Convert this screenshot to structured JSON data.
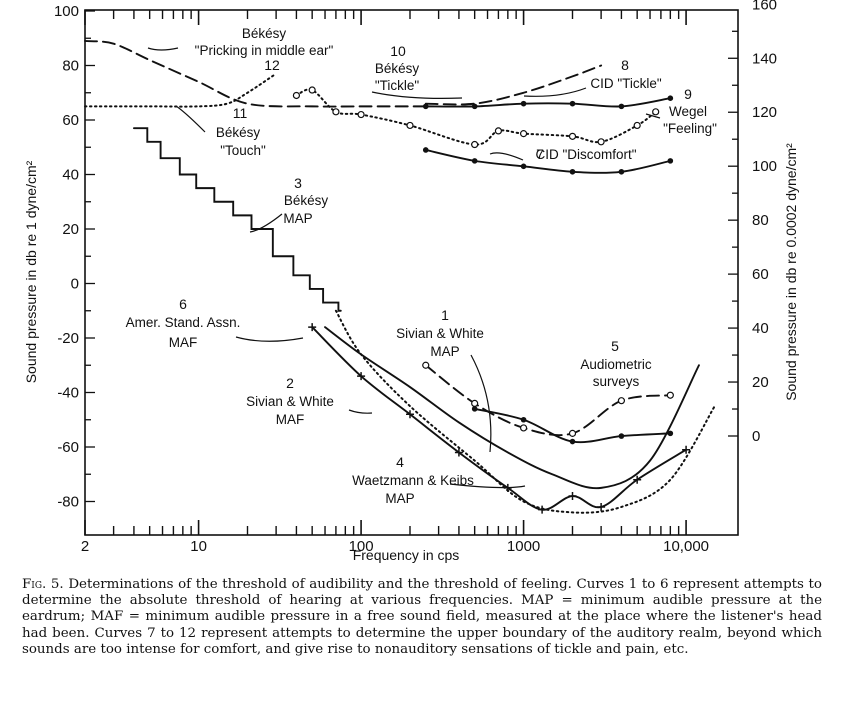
{
  "chart_data": {
    "type": "line",
    "xlabel": "Frequency in cps",
    "ylabel": "Sound pressure in db re 1 dyne/cm²",
    "ylabel_right": "Sound pressure in db re 0.0002 dyne/cm²",
    "x_scale": "log",
    "xlim": [
      2,
      20000
    ],
    "ylim": [
      -90,
      100
    ],
    "x_ticks": [
      2,
      10,
      100,
      1000,
      10000
    ],
    "x_tick_labels": [
      "2",
      "10",
      "100",
      "1000",
      "10,000"
    ],
    "y_ticks": [
      100,
      80,
      60,
      40,
      20,
      0,
      -20,
      -40,
      -60,
      -80
    ],
    "y_tick_labels": [
      "100",
      "80",
      "60",
      "40",
      "20",
      "0",
      "-20",
      "-40",
      "-60",
      "-80"
    ],
    "y_right_ticks": [
      160,
      140,
      120,
      100,
      80,
      60,
      40,
      20,
      0
    ],
    "y_right_tick_labels": [
      "160",
      "140",
      "120",
      "100",
      "80",
      "60",
      "40",
      "20",
      "0"
    ],
    "series": [
      {
        "name": "1 Sivian & White MAP",
        "style": "dashed",
        "marker": "circle",
        "x": [
          250,
          500,
          1000,
          2000,
          4000,
          8000
        ],
        "y": [
          -30,
          -44,
          -53,
          -55,
          -43,
          -41
        ]
      },
      {
        "name": "2 Sivian & White MAF",
        "style": "solid",
        "marker": "none",
        "x": [
          60,
          100,
          200,
          400,
          800,
          1500,
          3000,
          6000,
          12000
        ],
        "y": [
          -16,
          -26,
          -38,
          -51,
          -62,
          -70,
          -75,
          -65,
          -30
        ]
      },
      {
        "name": "3 Békésy MAP",
        "style": "staircase",
        "marker": "none",
        "x": [
          4,
          5,
          6,
          8,
          10,
          13,
          17,
          22,
          30,
          40,
          50,
          60,
          75
        ],
        "y": [
          57,
          52,
          46,
          40,
          35,
          30,
          25,
          20,
          10,
          3,
          -2,
          -7,
          -10
        ]
      },
      {
        "name": "4 Waetzmann & Keibs MAP",
        "style": "solid",
        "marker": "plus",
        "x": [
          50,
          100,
          200,
          400,
          800,
          1300,
          2000,
          3000,
          5000,
          10000
        ],
        "y": [
          -16,
          -34,
          -48,
          -62,
          -75,
          -83,
          -78,
          -82,
          -72,
          -61
        ]
      },
      {
        "name": "5 Audiometric surveys",
        "style": "solid",
        "marker": "dot",
        "x": [
          500,
          1000,
          2000,
          4000,
          8000
        ],
        "y": [
          -46,
          -50,
          -58,
          -56,
          -55
        ]
      },
      {
        "name": "6 Amer. Stand. Assn. MAF",
        "style": "dotted",
        "marker": "none",
        "x": [
          70,
          100,
          200,
          500,
          1000,
          2000,
          4000,
          8000,
          15000
        ],
        "y": [
          -10,
          -26,
          -45,
          -65,
          -80,
          -84,
          -82,
          -72,
          -45
        ]
      },
      {
        "name": "7 CID \"Discomfort\"",
        "style": "solid",
        "marker": "dot",
        "x": [
          250,
          500,
          1000,
          2000,
          4000,
          8000
        ],
        "y": [
          49,
          45,
          43,
          41,
          41,
          45
        ]
      },
      {
        "name": "8 CID \"Tickle\"",
        "style": "solid",
        "marker": "dot",
        "x": [
          250,
          500,
          1000,
          2000,
          4000,
          8000
        ],
        "y": [
          65,
          65,
          66,
          66,
          65,
          68
        ]
      },
      {
        "name": "9 Wegel \"Feeling\"",
        "style": "dotted",
        "marker": "circle",
        "x": [
          40,
          50,
          70,
          100,
          200,
          500,
          700,
          1000,
          2000,
          3000,
          5000,
          6500
        ],
        "y": [
          69,
          71,
          63,
          62,
          58,
          51,
          56,
          55,
          54,
          52,
          58,
          63
        ]
      },
      {
        "name": "10 Békésy \"Tickle\"",
        "style": "dashed",
        "marker": "none",
        "x": [
          250,
          500,
          1000,
          2000,
          3000
        ],
        "y": [
          66,
          66,
          70,
          76,
          80
        ]
      },
      {
        "name": "11 Békésy \"Touch\"",
        "style": "dotted",
        "marker": "none",
        "x": [
          2,
          5,
          10,
          15,
          20,
          30
        ],
        "y": [
          65,
          65,
          65,
          66,
          70,
          77
        ]
      },
      {
        "name": "12 Békésy \"Pricking in middle ear\"",
        "style": "dashed",
        "marker": "none",
        "x": [
          2,
          3,
          5,
          10,
          20,
          50,
          100,
          250
        ],
        "y": [
          89,
          88,
          82,
          74,
          66,
          65,
          65,
          65
        ]
      }
    ],
    "annotations": [
      {
        "label": "Békésy \"Pricking in middle ear\"",
        "num": "12"
      },
      {
        "label": "Békésy \"Tickle\"",
        "num": "10"
      },
      {
        "label": "CID \"Tickle\"",
        "num": "8"
      },
      {
        "label": "Wegel \"Feeling\"",
        "num": "9"
      },
      {
        "label": "Békésy \"Touch\"",
        "num": "11"
      },
      {
        "label": "CID \"Discomfort\"",
        "num": "7"
      },
      {
        "label": "Békésy MAP",
        "num": "3"
      },
      {
        "label": "Amer. Stand. Assn. MAF",
        "num": "6"
      },
      {
        "label": "Sivian & White MAP",
        "num": "1"
      },
      {
        "label": "Audiometric surveys",
        "num": "5"
      },
      {
        "label": "Sivian & White MAF",
        "num": "2"
      },
      {
        "label": "Waetzmann & Keibs MAP",
        "num": "4"
      }
    ]
  },
  "caption": {
    "figure_label": "Fig. 5.",
    "text": "Determinations of the threshold of audibility and the threshold of feeling. Curves 1 to 6 represent attempts to determine the absolute threshold of hearing at various frequencies. MAP = minimum audible pressure at the eardrum; MAF = minimum audible pressure in a free sound field, measured at the place where the listener's head had been. Curves 7 to 12 represent attempts to determine the upper boundary of the auditory realm, beyond which sounds are too intense for comfort, and give rise to nonauditory sensations of tickle and pain, etc."
  }
}
